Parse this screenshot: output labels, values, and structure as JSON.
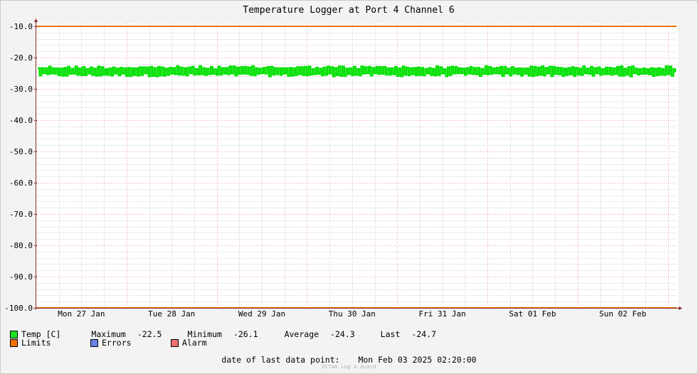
{
  "chart_data": {
    "type": "line",
    "title": "Temperature Logger at Port 4 Channel 6",
    "y_ticks": [
      "-10.0",
      "-20.0",
      "-30.0",
      "-40.0",
      "-50.0",
      "-60.0",
      "-70.0",
      "-80.0",
      "-90.0",
      "-100.0"
    ],
    "y_tick_values": [
      -10,
      -20,
      -30,
      -40,
      -50,
      -60,
      -70,
      -80,
      -90,
      -100
    ],
    "ylim": [
      -100,
      -10
    ],
    "x_tick_labels": [
      "Mon 27 Jan",
      "Tue 28 Jan",
      "Wed 29 Jan",
      "Thu 30 Jan",
      "Fri 31 Jan",
      "Sat 01 Feb",
      "Sun 02 Feb"
    ],
    "x_start": "2025-01-27T00:00:00",
    "x_end": "2025-02-03T02:20:00",
    "grid": true,
    "series": [
      {
        "name": "Temp [C]",
        "color": "#00e000",
        "min": -26.1,
        "max": -22.5,
        "avg": -24.3,
        "last": -24.7,
        "samples": 340
      },
      {
        "name": "Limits",
        "color": "#f07000",
        "values": [
          -10,
          -100
        ]
      }
    ]
  },
  "legend": {
    "temp": {
      "label": "Temp [C]",
      "color": "#22e022"
    },
    "limits": {
      "label": "Limits",
      "color": "#f07000"
    },
    "errors": {
      "label": "Errors",
      "color": "#6a82e6"
    },
    "alarm": {
      "label": "Alarm",
      "color": "#f07070"
    },
    "stats": {
      "max_label": "Maximum",
      "max_value": "-22.5",
      "min_label": "Minimum",
      "min_value": "-26.1",
      "avg_label": "Average",
      "avg_value": "-24.3",
      "last_label": "Last",
      "last_value": "-24.7"
    }
  },
  "footer": {
    "last_point_label": "date of last data point:",
    "last_point_value": "Mon Feb 03 2025 02:20:00",
    "credit": "OCTAA Log & Guard"
  }
}
